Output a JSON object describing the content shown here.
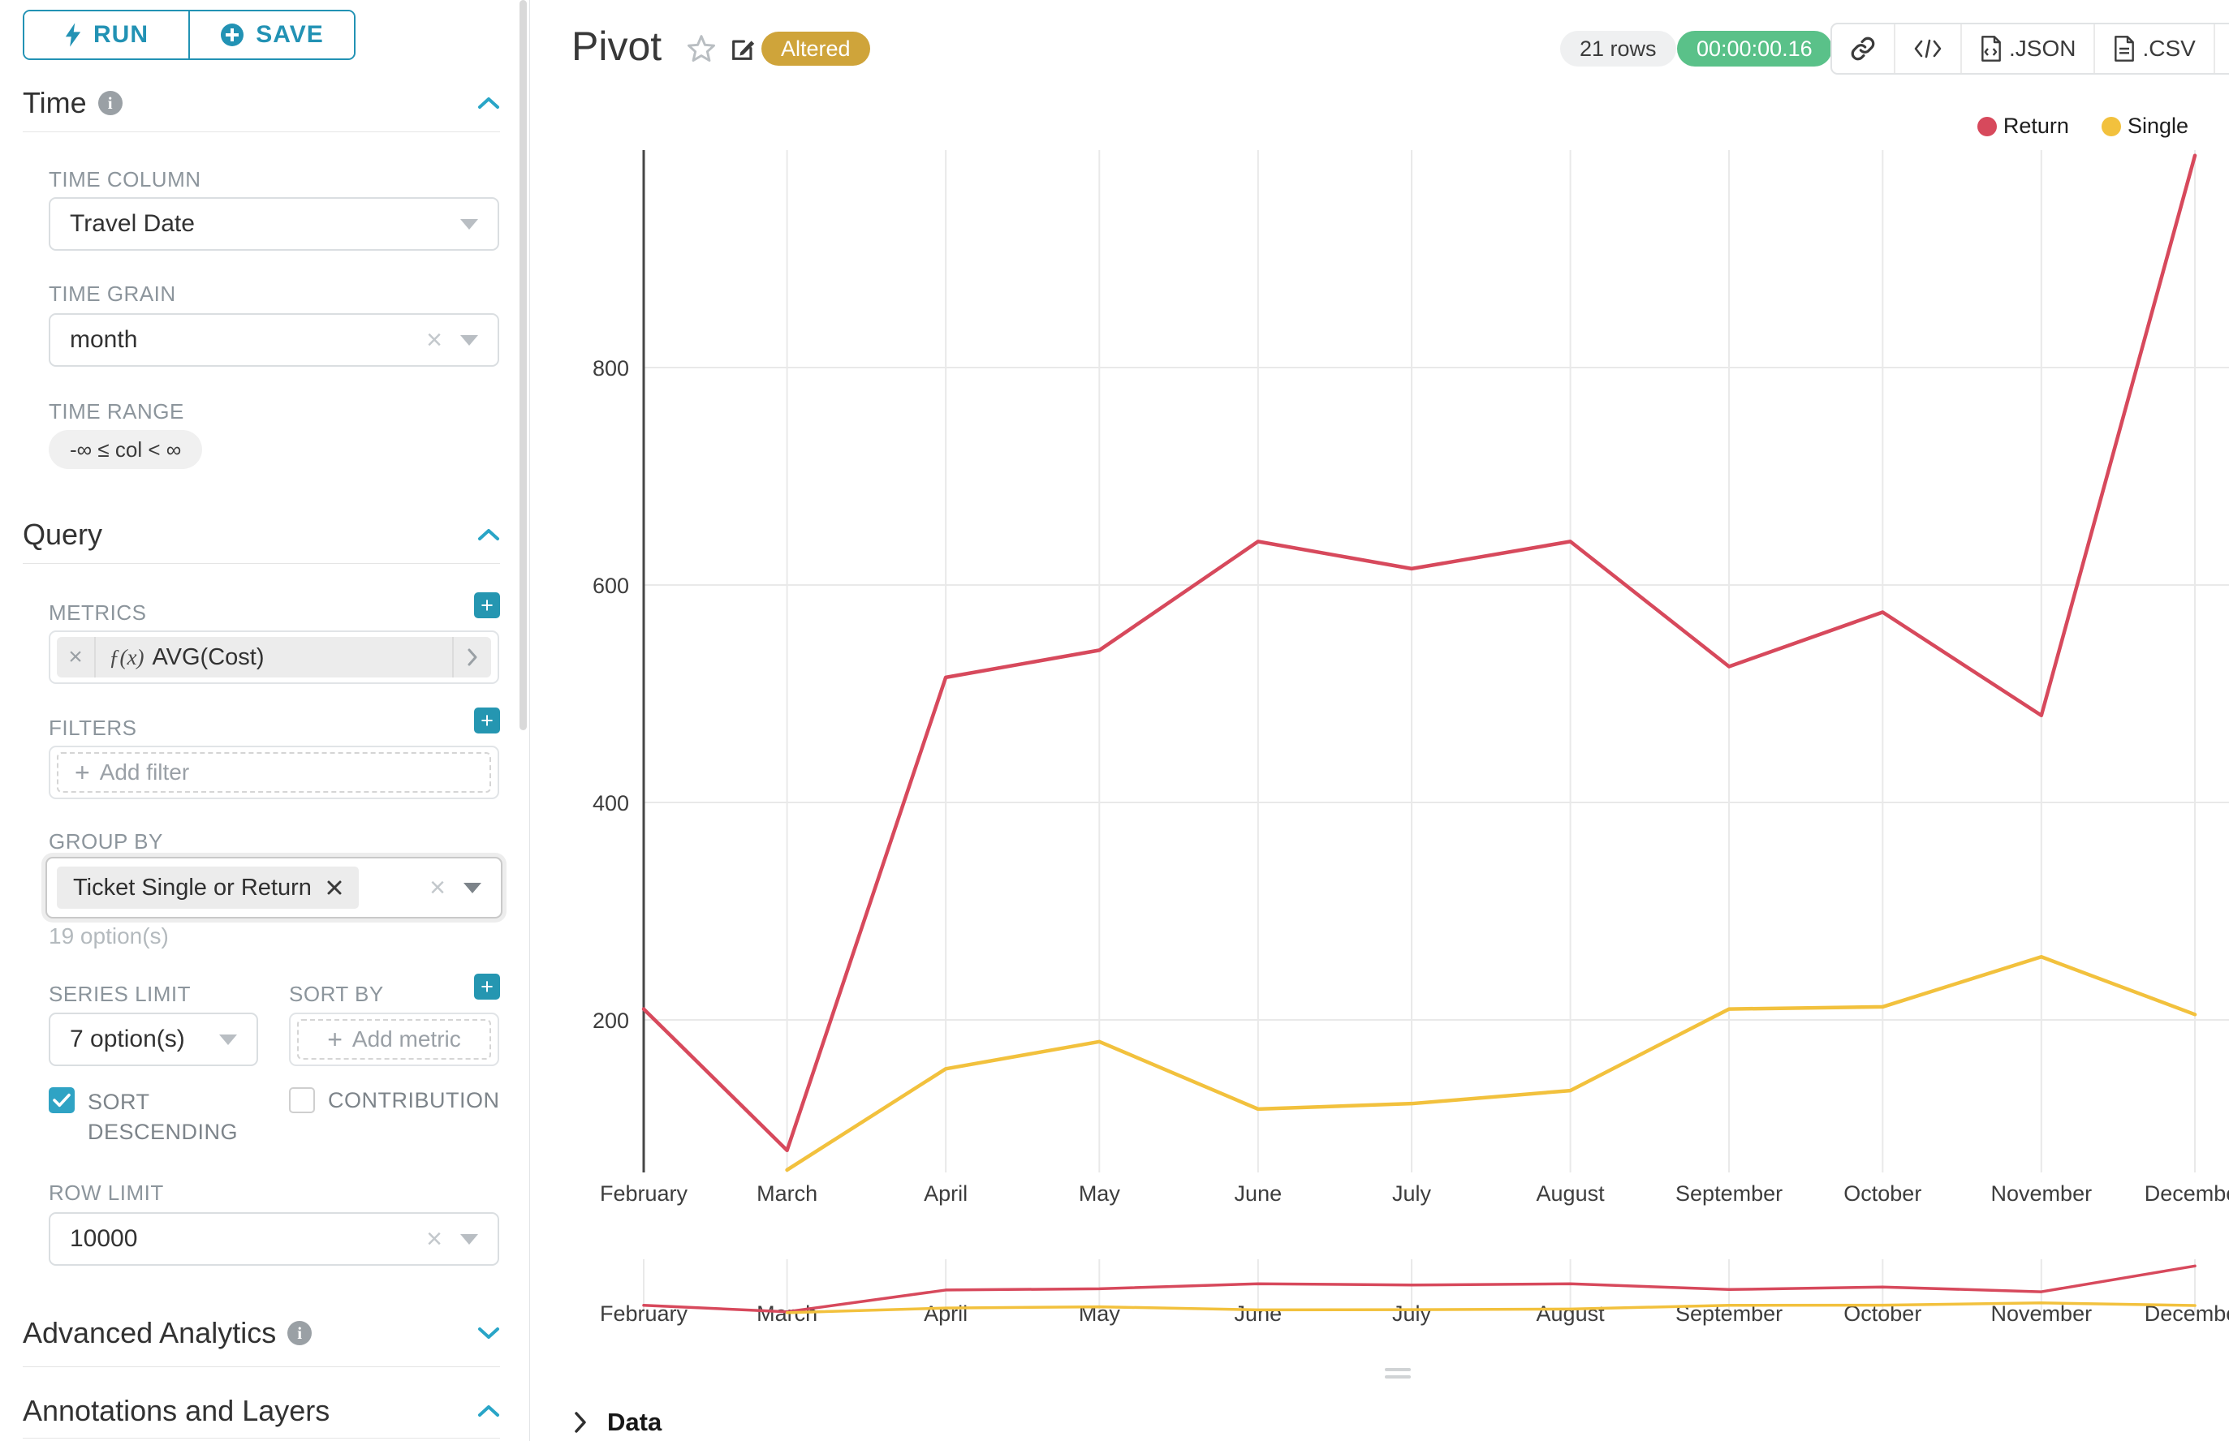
{
  "sidebar": {
    "run_button": {
      "label": "RUN"
    },
    "save_button": {
      "label": "SAVE"
    },
    "time_section": {
      "title": "Time",
      "time_column_label": "TIME COLUMN",
      "time_column_value": "Travel Date",
      "time_grain_label": "TIME GRAIN",
      "time_grain_value": "month",
      "time_range_label": "TIME RANGE",
      "time_range_value": "-∞ ≤ col < ∞"
    },
    "query_section": {
      "title": "Query",
      "metrics_label": "METRICS",
      "metric_fx": "ƒ(x)",
      "metric_value": "AVG(Cost)",
      "filters_label": "FILTERS",
      "add_filter_placeholder": "Add filter",
      "group_by_label": "GROUP BY",
      "group_by_chip": "Ticket Single or Return",
      "group_by_hint": "19 option(s)",
      "series_limit_label": "SERIES LIMIT",
      "series_limit_value": "7 option(s)",
      "sort_by_label": "SORT BY",
      "add_metric_placeholder": "Add metric",
      "sort_descending_label": "SORT DESCENDING",
      "sort_descending_checked": true,
      "contribution_label": "CONTRIBUTION",
      "contribution_checked": false,
      "row_limit_label": "ROW LIMIT",
      "row_limit_value": "10000"
    },
    "advanced_section_title": "Advanced Analytics",
    "annotations_section_title": "Annotations and Layers"
  },
  "header": {
    "title": "Pivot",
    "altered_badge": "Altered",
    "rows_badge": "21 rows",
    "timer_badge": "00:00:00.16",
    "json_button": ".JSON",
    "csv_button": ".CSV"
  },
  "footer": {
    "data_label": "Data"
  },
  "chart_data": {
    "type": "line",
    "title": "",
    "xlabel": "",
    "ylabel": "",
    "x_axis_type": "time",
    "categories": [
      "February",
      "March",
      "April",
      "May",
      "June",
      "July",
      "August",
      "September",
      "October",
      "November",
      "December"
    ],
    "x_day_offsets": [
      0,
      28,
      59,
      89,
      120,
      150,
      181,
      212,
      242,
      273,
      303
    ],
    "series": [
      {
        "name": "Return",
        "color": "#d7495c",
        "values": [
          210,
          80,
          515,
          540,
          640,
          615,
          640,
          525,
          575,
          480,
          995
        ]
      },
      {
        "name": "Single",
        "color": "#f2c13d",
        "values": [
          null,
          62,
          155,
          180,
          118,
          123,
          135,
          210,
          212,
          258,
          205
        ]
      }
    ],
    "y_ticks": [
      200,
      400,
      600,
      800
    ],
    "y_range": [
      60,
      1000
    ],
    "grid": true,
    "legend_position": "top-right",
    "has_minimap": true
  }
}
